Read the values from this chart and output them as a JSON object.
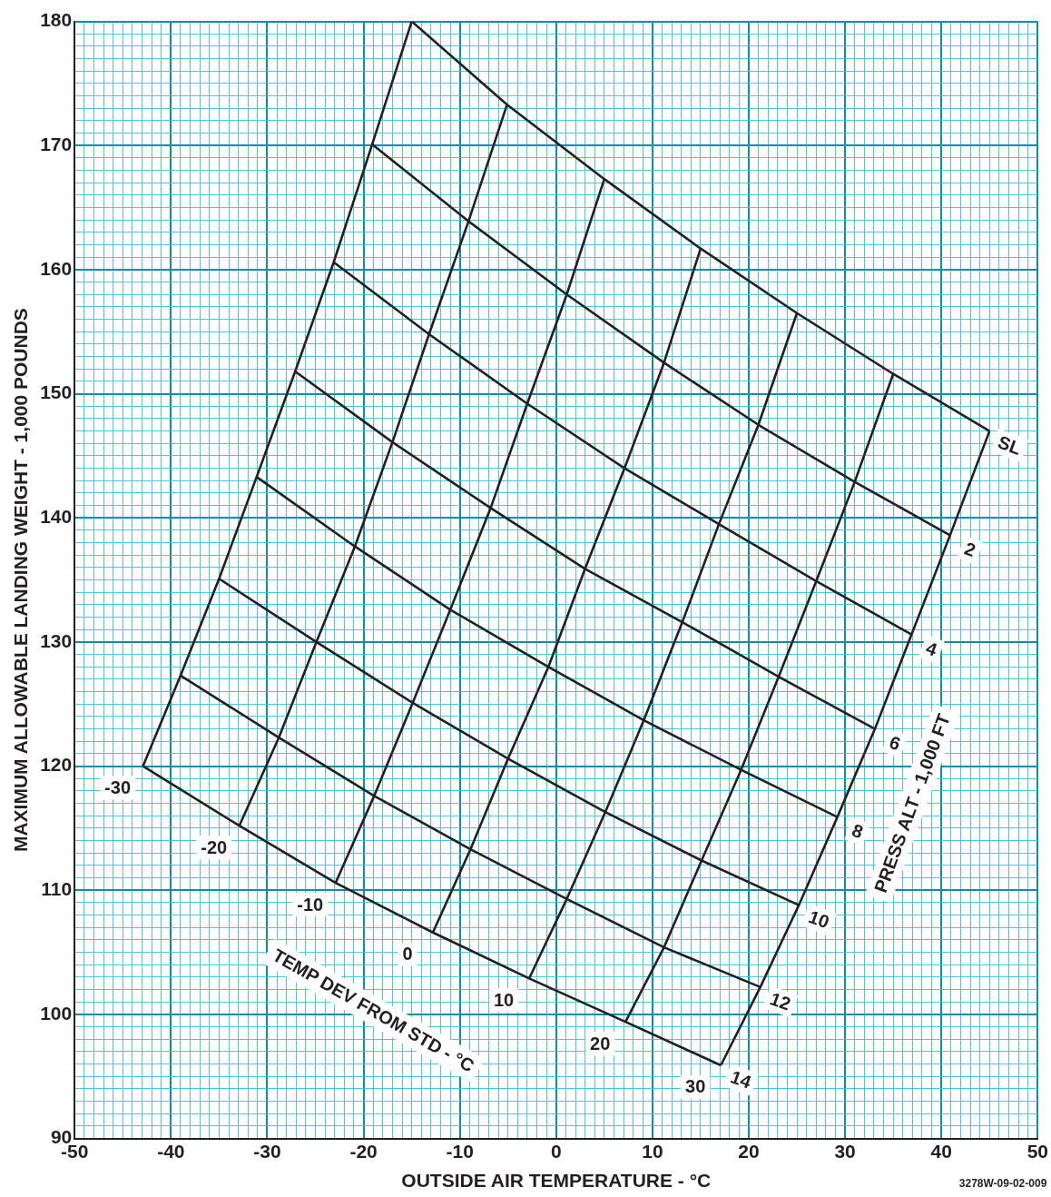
{
  "chart_data": {
    "type": "line",
    "xlabel": "OUTSIDE AIR TEMPERATURE - °C",
    "ylabel": "MAXIMUM ALLOWABLE LANDING WEIGHT - 1,000 POUNDS",
    "xlim": [
      -50,
      50
    ],
    "xticks": [
      -50,
      {
        "value": -49,
        "label": null
      },
      {
        "value": -48,
        "label": null
      },
      {
        "value": -47,
        "label": null
      },
      {
        "value": -46,
        "label": null
      },
      {
        "value": -45,
        "label": null
      },
      {
        "value": -44,
        "label": null
      },
      {
        "value": -43,
        "label": null
      },
      {
        "value": -42,
        "label": null
      },
      {
        "value": -41,
        "label": null
      },
      -40,
      {
        "value": -39,
        "label": null
      },
      {
        "value": -38,
        "label": null
      },
      {
        "value": -37,
        "label": null
      },
      {
        "value": -36,
        "label": null
      },
      {
        "value": -35,
        "label": null
      },
      {
        "value": -34,
        "label": null
      },
      {
        "value": -33,
        "label": null
      },
      {
        "value": -32,
        "label": null
      },
      {
        "value": -31,
        "label": null
      },
      -30,
      {
        "value": -29,
        "label": null
      },
      {
        "value": -28,
        "label": null
      },
      {
        "value": -27,
        "label": null
      },
      {
        "value": -26,
        "label": null
      },
      {
        "value": -25,
        "label": null
      },
      {
        "value": -24,
        "label": null
      },
      {
        "value": -23,
        "label": null
      },
      {
        "value": -22,
        "label": null
      },
      {
        "value": -21,
        "label": null
      },
      -20,
      {
        "value": -19,
        "label": null
      },
      {
        "value": -18,
        "label": null
      },
      {
        "value": -17,
        "label": null
      },
      {
        "value": -16,
        "label": null
      },
      {
        "value": -15,
        "label": null
      },
      {
        "value": -14,
        "label": null
      },
      {
        "value": -13,
        "label": null
      },
      {
        "value": -12,
        "label": null
      },
      {
        "value": -11,
        "label": null
      },
      -10,
      {
        "value": -9,
        "label": null
      },
      {
        "value": -8,
        "label": null
      },
      {
        "value": -7,
        "label": null
      },
      {
        "value": -6,
        "label": null
      },
      {
        "value": -5,
        "label": null
      },
      {
        "value": -4,
        "label": null
      },
      {
        "value": -3,
        "label": null
      },
      {
        "value": -2,
        "label": null
      },
      {
        "value": -1,
        "label": null
      },
      0,
      {
        "value": 1,
        "label": null
      },
      {
        "value": 2,
        "label": null
      },
      {
        "value": 3,
        "label": null
      },
      {
        "value": 4,
        "label": null
      },
      {
        "value": 5,
        "label": null
      },
      {
        "value": 6,
        "label": null
      },
      {
        "value": 7,
        "label": null
      },
      {
        "value": 8,
        "label": null
      },
      {
        "value": 9,
        "label": null
      },
      10,
      {
        "value": 11,
        "label": null
      },
      {
        "value": 12,
        "label": null
      },
      {
        "value": 13,
        "label": null
      },
      {
        "value": 14,
        "label": null
      },
      {
        "value": 15,
        "label": null
      },
      {
        "value": 16,
        "label": null
      },
      {
        "value": 17,
        "label": null
      },
      {
        "value": 18,
        "label": null
      },
      {
        "value": 19,
        "label": null
      },
      20,
      {
        "value": 21,
        "label": null
      },
      {
        "value": 22,
        "label": null
      },
      {
        "value": 23,
        "label": null
      },
      {
        "value": 24,
        "label": null
      },
      {
        "value": 25,
        "label": null
      },
      {
        "value": 26,
        "label": null
      },
      {
        "value": 27,
        "label": null
      },
      {
        "value": 28,
        "label": null
      },
      {
        "value": 29,
        "label": null
      },
      30,
      {
        "value": 31,
        "label": null
      },
      {
        "value": 32,
        "label": null
      },
      {
        "value": 33,
        "label": null
      },
      {
        "value": 34,
        "label": null
      },
      {
        "value": 35,
        "label": null
      },
      {
        "value": 36,
        "label": null
      },
      {
        "value": 37,
        "label": null
      },
      {
        "value": 38,
        "label": null
      },
      {
        "value": 39,
        "label": null
      },
      40,
      {
        "value": 41,
        "label": null
      },
      {
        "value": 42,
        "label": null
      },
      {
        "value": 43,
        "label": null
      },
      {
        "value": 44,
        "label": null
      },
      {
        "value": 45,
        "label": null
      },
      {
        "value": 46,
        "label": null
      },
      {
        "value": 47,
        "label": null
      },
      {
        "value": 48,
        "label": null
      },
      {
        "value": 49,
        "label": null
      },
      50
    ],
    "ylim": [
      90,
      180
    ],
    "yticks": [
      90,
      {
        "value": 91,
        "label": null
      },
      {
        "value": 92,
        "label": null
      },
      {
        "value": 93,
        "label": null
      },
      {
        "value": 94,
        "label": null
      },
      {
        "value": 95,
        "label": null
      },
      {
        "value": 96,
        "label": null
      },
      {
        "value": 97,
        "label": null
      },
      {
        "value": 98,
        "label": null
      },
      {
        "value": 99,
        "label": null
      },
      100,
      {
        "value": 101,
        "label": null
      },
      {
        "value": 102,
        "label": null
      },
      {
        "value": 103,
        "label": null
      },
      {
        "value": 104,
        "label": null
      },
      {
        "value": 105,
        "label": null
      },
      {
        "value": 106,
        "label": null
      },
      {
        "value": 107,
        "label": null
      },
      {
        "value": 108,
        "label": null
      },
      {
        "value": 109,
        "label": null
      },
      110,
      {
        "value": 111,
        "label": null
      },
      {
        "value": 112,
        "label": null
      },
      {
        "value": 113,
        "label": null
      },
      {
        "value": 114,
        "label": null
      },
      {
        "value": 115,
        "label": null
      },
      {
        "value": 116,
        "label": null
      },
      {
        "value": 117,
        "label": null
      },
      {
        "value": 118,
        "label": null
      },
      {
        "value": 119,
        "label": null
      },
      120,
      {
        "value": 121,
        "label": null
      },
      {
        "value": 122,
        "label": null
      },
      {
        "value": 123,
        "label": null
      },
      {
        "value": 124,
        "label": null
      },
      {
        "value": 125,
        "label": null
      },
      {
        "value": 126,
        "label": null
      },
      {
        "value": 127,
        "label": null
      },
      {
        "value": 128,
        "label": null
      },
      {
        "value": 129,
        "label": null
      },
      130,
      {
        "value": 131,
        "label": null
      },
      {
        "value": 132,
        "label": null
      },
      {
        "value": 133,
        "label": null
      },
      {
        "value": 134,
        "label": null
      },
      {
        "value": 135,
        "label": null
      },
      {
        "value": 136,
        "label": null
      },
      {
        "value": 137,
        "label": null
      },
      {
        "value": 138,
        "label": null
      },
      {
        "value": 139,
        "label": null
      },
      140,
      {
        "value": 141,
        "label": null
      },
      {
        "value": 142,
        "label": null
      },
      {
        "value": 143,
        "label": null
      },
      {
        "value": 144,
        "label": null
      },
      {
        "value": 145,
        "label": null
      },
      {
        "value": 146,
        "label": null
      },
      {
        "value": 147,
        "label": null
      },
      {
        "value": 148,
        "label": null
      },
      {
        "value": 149,
        "label": null
      },
      150,
      {
        "value": 151,
        "label": null
      },
      {
        "value": 152,
        "label": null
      },
      {
        "value": 153,
        "label": null
      },
      {
        "value": 154,
        "label": null
      },
      {
        "value": 155,
        "label": null
      },
      {
        "value": 156,
        "label": null
      },
      {
        "value": 157,
        "label": null
      },
      {
        "value": 158,
        "label": null
      },
      {
        "value": 159,
        "label": null
      },
      160,
      {
        "value": 161,
        "label": null
      },
      {
        "value": 162,
        "label": null
      },
      {
        "value": 163,
        "label": null
      },
      {
        "value": 164,
        "label": null
      },
      {
        "value": 165,
        "label": null
      },
      {
        "value": 166,
        "label": null
      },
      {
        "value": 167,
        "label": null
      },
      {
        "value": 168,
        "label": null
      },
      {
        "value": 169,
        "label": null
      },
      170,
      {
        "value": 171,
        "label": null
      },
      {
        "value": 172,
        "label": null
      },
      {
        "value": 173,
        "label": null
      },
      {
        "value": 174,
        "label": null
      },
      {
        "value": 175,
        "label": null
      },
      {
        "value": 176,
        "label": null
      },
      {
        "value": 177,
        "label": null
      },
      {
        "value": 178,
        "label": null
      },
      {
        "value": 179,
        "label": null
      },
      180
    ],
    "grid": true,
    "legend": false,
    "marker": "none",
    "line_style": "solid",
    "annotations": [
      "PRESS ALT - 1,000 FT",
      "TEMP DEV FROM STD - °C",
      "3278W-09-02-009"
    ],
    "series": [
      {
        "name": "SL",
        "color": "#231f20",
        "x": [
          -15.0,
          -5.1,
          5.0,
          15.0,
          25.0,
          35.0,
          45.0
        ],
        "values": [
          180.0,
          173.3,
          167.3,
          161.7,
          156.5,
          151.6,
          147.0
        ]
      },
      {
        "name": "2",
        "color": "#231f20",
        "x": [
          -19.1,
          -9.1,
          1.1,
          11.2,
          21.0,
          31.0,
          40.9
        ],
        "values": [
          170.1,
          163.9,
          158.0,
          152.5,
          147.5,
          142.9,
          138.6
        ]
      },
      {
        "name": "4",
        "color": "#231f20",
        "x": [
          -23.1,
          -13.2,
          -3.0,
          7.1,
          16.9,
          27.0,
          36.9
        ],
        "values": [
          160.6,
          154.8,
          149.2,
          144.0,
          139.5,
          134.9,
          130.6
        ]
      },
      {
        "name": "6",
        "color": "#231f20",
        "x": [
          -27.1,
          -17.0,
          -6.8,
          3.0,
          13.1,
          23.1,
          33.1
        ],
        "values": [
          151.8,
          146.1,
          140.8,
          135.9,
          131.6,
          127.2,
          123.0
        ]
      },
      {
        "name": "8",
        "color": "#231f20",
        "x": [
          -31.1,
          -20.9,
          -11.0,
          -0.8,
          9.1,
          19.2,
          29.2
        ],
        "values": [
          143.3,
          137.7,
          132.6,
          128.0,
          123.7,
          119.7,
          115.9
        ]
      },
      {
        "name": "10",
        "color": "#231f20",
        "x": [
          -35.0,
          -24.9,
          -14.9,
          -5.0,
          5.1,
          15.1,
          25.2
        ],
        "values": [
          135.1,
          130.0,
          125.1,
          120.6,
          116.3,
          112.4,
          108.8
        ]
      },
      {
        "name": "12",
        "color": "#231f20",
        "x": [
          -39.0,
          -28.8,
          -18.9,
          -8.9,
          1.1,
          11.2,
          21.2
        ],
        "values": [
          127.3,
          122.3,
          117.6,
          113.3,
          109.3,
          105.4,
          102.2
        ]
      },
      {
        "name": "14",
        "color": "#231f20",
        "x": [
          -42.9,
          -32.9,
          -22.9,
          -12.8,
          -2.8,
          7.2,
          17.1
        ],
        "values": [
          120.0,
          115.2,
          110.6,
          106.6,
          102.9,
          99.4,
          95.9
        ]
      },
      {
        "name": "-30",
        "color": "#231f20",
        "x": [
          -42.9,
          -39.0,
          -35.0,
          -31.1,
          -27.1,
          -23.1,
          -19.1,
          -15.0
        ],
        "values": [
          120.0,
          127.3,
          135.1,
          143.3,
          151.8,
          160.6,
          170.1,
          180.0
        ]
      },
      {
        "name": "-20",
        "color": "#231f20",
        "x": [
          -32.9,
          -28.8,
          -24.9,
          -20.9,
          -17.0,
          -13.2,
          -9.1,
          -5.1
        ],
        "values": [
          115.2,
          122.3,
          130.0,
          137.7,
          146.1,
          154.8,
          163.9,
          173.3
        ]
      },
      {
        "name": "-10",
        "color": "#231f20",
        "x": [
          -22.9,
          -18.9,
          -14.9,
          -11.0,
          -6.8,
          -3.0,
          1.1,
          5.0
        ],
        "values": [
          110.6,
          117.6,
          125.1,
          132.6,
          140.8,
          149.2,
          158.0,
          167.3
        ]
      },
      {
        "name": "0",
        "color": "#231f20",
        "x": [
          -12.8,
          -8.9,
          -5.0,
          -0.8,
          3.0,
          7.1,
          11.2,
          15.0
        ],
        "values": [
          106.6,
          113.3,
          120.6,
          128.0,
          135.9,
          144.0,
          152.5,
          161.7
        ]
      },
      {
        "name": "10",
        "color": "#231f20",
        "x": [
          -2.8,
          1.1,
          5.1,
          9.1,
          13.1,
          16.9,
          21.0,
          25.0
        ],
        "values": [
          102.9,
          109.3,
          116.3,
          123.7,
          131.6,
          139.5,
          147.5,
          156.5
        ]
      },
      {
        "name": "20",
        "color": "#231f20",
        "x": [
          7.2,
          11.2,
          15.1,
          19.2,
          23.1,
          27.0,
          31.0,
          35.0
        ],
        "values": [
          99.4,
          105.4,
          112.4,
          119.7,
          127.2,
          134.9,
          142.9,
          151.6
        ]
      },
      {
        "name": "30",
        "color": "#231f20",
        "x": [
          17.1,
          21.2,
          25.2,
          29.2,
          33.1,
          36.9,
          40.9,
          45.0
        ],
        "values": [
          95.9,
          102.2,
          108.8,
          115.9,
          123.0,
          130.6,
          138.6,
          147.0
        ]
      }
    ]
  }
}
